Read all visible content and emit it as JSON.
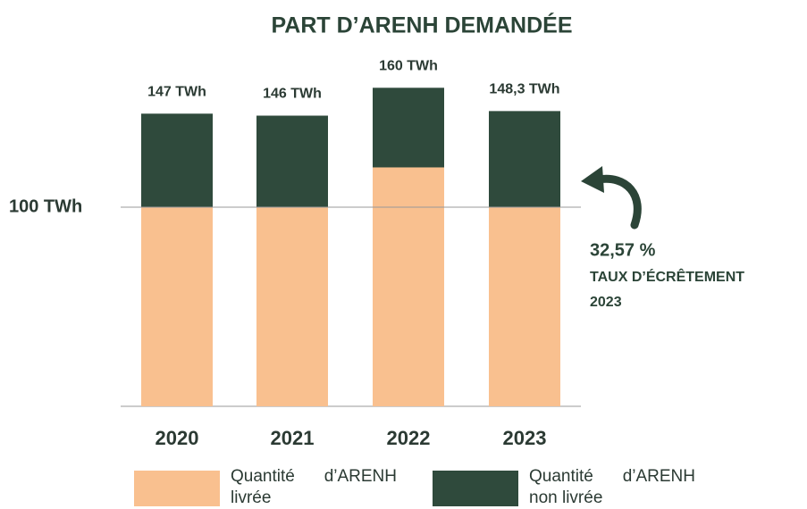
{
  "chart_data": {
    "type": "stacked_bar",
    "title": "PART D’ARENH DEMANDÉE",
    "categories": [
      "2020",
      "2021",
      "2022",
      "2023"
    ],
    "series": [
      {
        "name": "Quantité d’ARENH livrée",
        "color": "#f9c08f",
        "values": [
          100,
          100,
          120,
          100
        ]
      },
      {
        "name": "Quantité d’ARENH non livrée",
        "color": "#2f4a3c",
        "values": [
          47,
          46,
          40,
          48.3
        ]
      }
    ],
    "totals": [
      147,
      146,
      160,
      148.3
    ],
    "total_labels": [
      "147 TWh",
      "146 TWh",
      "160 TWh",
      "148,3 TWh"
    ],
    "ylim": [
      0,
      170
    ],
    "yticks": [
      {
        "value": 100,
        "label": "100 TWh"
      }
    ],
    "annotation": {
      "value_label": "32,57 %",
      "text": "TAUX D’ÉCRÊTEMENT",
      "year": "2023"
    }
  }
}
